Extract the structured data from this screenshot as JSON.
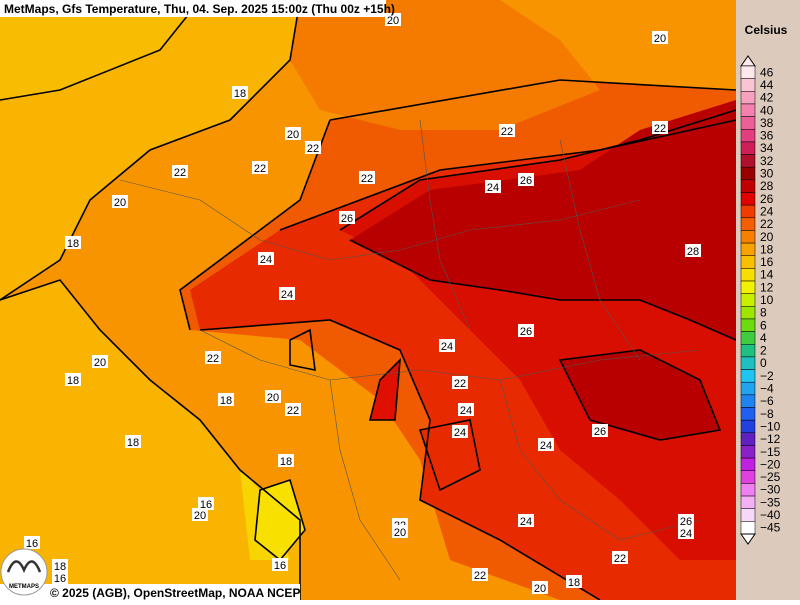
{
  "header": {
    "title": "MetMaps, Gfs Temperature, Thu, 04. Sep. 2025 15:00z (Thu 00z +15h)"
  },
  "legend": {
    "title": "Celsius",
    "labels": [
      "46",
      "44",
      "42",
      "40",
      "38",
      "36",
      "34",
      "32",
      "30",
      "28",
      "26",
      "24",
      "22",
      "20",
      "18",
      "16",
      "14",
      "12",
      "10",
      "8",
      "6",
      "4",
      "2",
      "0",
      "−2",
      "−4",
      "−6",
      "−8",
      "−10",
      "−12",
      "−15",
      "−20",
      "−25",
      "−30",
      "−35",
      "−40",
      "−45"
    ],
    "colors": [
      "#fde8ee",
      "#f9c4d4",
      "#f6a2bf",
      "#f282ad",
      "#ec6098",
      "#e23e80",
      "#cc2056",
      "#b0102c",
      "#980000",
      "#c00000",
      "#e00000",
      "#f03c00",
      "#f45e00",
      "#f88000",
      "#f8a200",
      "#f8c000",
      "#f8de00",
      "#f2f200",
      "#c8ee00",
      "#9ee600",
      "#6cdc10",
      "#40cc40",
      "#20c080",
      "#20c0c0",
      "#20c4f0",
      "#20a4f0",
      "#2084f0",
      "#2060f0",
      "#2040e0",
      "#6020c0",
      "#8c20c8",
      "#c020e0",
      "#e040e0",
      "#f080f0",
      "#f4b0f4",
      "#f8d8f8",
      "#ffffff"
    ]
  },
  "map": {
    "contour_labels": [
      "20",
      "20",
      "18",
      "20",
      "22",
      "22",
      "22",
      "22",
      "20",
      "18",
      "24",
      "26",
      "24",
      "26",
      "22",
      "28",
      "24",
      "26",
      "24",
      "22",
      "20",
      "18",
      "20",
      "22",
      "24",
      "18",
      "22",
      "24",
      "24",
      "18",
      "26",
      "18",
      "16",
      "22",
      "20",
      "24",
      "22",
      "20",
      "22",
      "26",
      "24",
      "16",
      "18",
      "16",
      "20",
      "18",
      "16",
      "22"
    ]
  },
  "footer": {
    "copyright": "© 2025 (AGB), OpenStreetMap, NOAA NCEP",
    "logo": "METMAPS"
  }
}
